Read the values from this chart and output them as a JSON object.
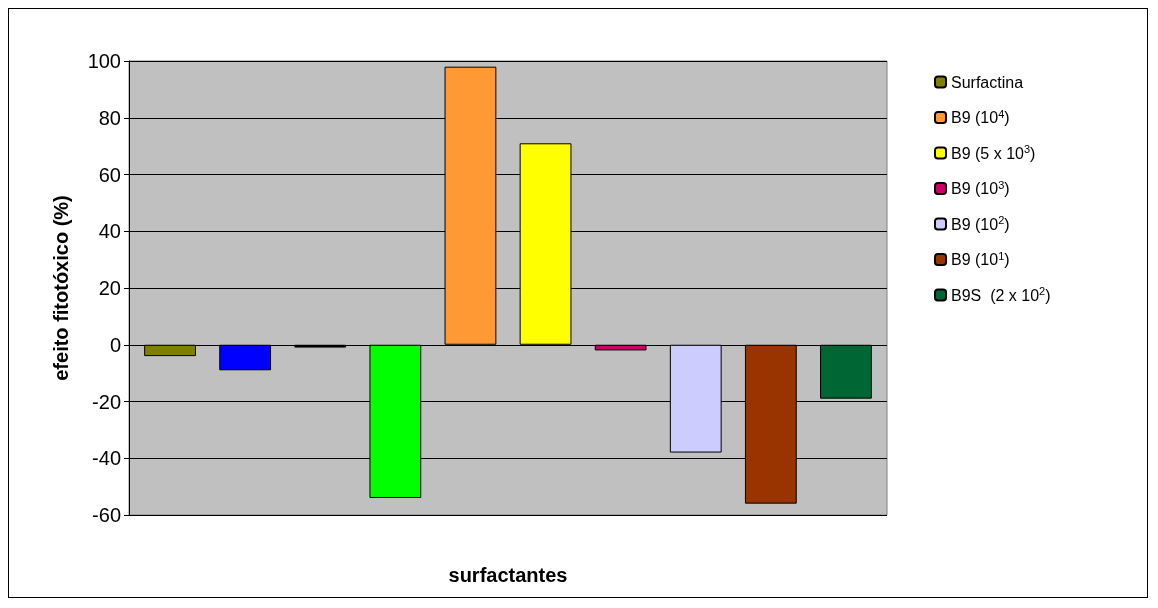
{
  "chart_data": {
    "type": "bar",
    "xlabel": "surfactantes",
    "ylabel": "efeito fitotóxico (%)",
    "categories": [
      null
    ],
    "series": [
      {
        "name": "Surfactina",
        "color": "#808000",
        "values": [
          -4
        ]
      },
      {
        "color": "#0000ff",
        "values": [
          -9
        ]
      },
      {
        "color": "#000000",
        "values": [
          -1
        ]
      },
      {
        "color": "#00ff00",
        "values": [
          -54
        ]
      },
      {
        "name": "B9 (10$^{4}$)",
        "color": "#ff9933",
        "values": [
          98
        ]
      },
      {
        "name": "B9 (5 x 10$^{3}$)",
        "color": "#ffff00",
        "values": [
          71
        ]
      },
      {
        "name": "B9 (10$^{3}$)",
        "color": "#cc0066",
        "values": [
          -2
        ]
      },
      {
        "name": "B9 (10$^{2}$)",
        "color": "#ccccff",
        "values": [
          -38
        ]
      },
      {
        "name": "B9 (10$^{1}$)",
        "color": "#993300",
        "values": [
          -56
        ]
      },
      {
        "name": "B9S  (2 x 10$^{2}$)",
        "color": "#006633",
        "values": [
          -19
        ]
      }
    ],
    "ylim": [
      -60,
      100
    ],
    "yticks": [
      -60,
      -40,
      -20,
      0,
      20,
      40,
      60,
      80,
      100
    ],
    "grid": "y",
    "legend": "right"
  }
}
